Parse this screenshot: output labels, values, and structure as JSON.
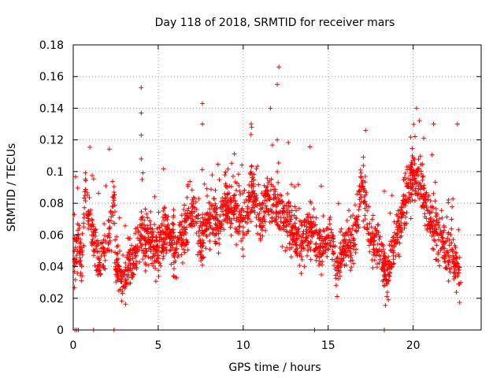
{
  "chart_data": {
    "type": "scatter",
    "title": "Day 118 of 2018, SRMTID for receiver mars",
    "xlabel": "GPS time / hours",
    "ylabel": "SRMTID / TECUs",
    "xlim": [
      0,
      24
    ],
    "ylim": [
      0,
      0.18
    ],
    "xticks": [
      0,
      5,
      10,
      15,
      20
    ],
    "yticks": [
      0,
      0.02,
      0.04,
      0.06,
      0.08,
      0.1,
      0.12,
      0.14,
      0.16,
      0.18
    ],
    "xtick_labels": [
      "0",
      "5",
      "10",
      "15",
      "20"
    ],
    "ytick_labels": [
      "0",
      "0.02",
      "0.04",
      "0.06",
      "0.08",
      "0.1",
      "0.12",
      "0.14",
      "0.16",
      "0.18"
    ],
    "grid": true,
    "marker": "+",
    "color": "#ff0000",
    "series": [
      {
        "name": "SRMTID",
        "sample_points": [
          [
            0.1,
            0.045
          ],
          [
            0.3,
            0.06
          ],
          [
            0.5,
            0.04
          ],
          [
            0.7,
            0.085
          ],
          [
            0.9,
            0.075
          ],
          [
            1.1,
            0.06
          ],
          [
            1.5,
            0.045
          ],
          [
            2.0,
            0.05
          ],
          [
            2.5,
            0.04
          ],
          [
            2.4,
            0.087
          ],
          [
            3.0,
            0.035
          ],
          [
            3.5,
            0.045
          ],
          [
            4.0,
            0.06
          ],
          [
            4.0,
            0.123
          ],
          [
            4.0,
            0.137
          ],
          [
            4.0,
            0.153
          ],
          [
            4.0,
            0.108
          ],
          [
            4.5,
            0.055
          ],
          [
            5.0,
            0.05
          ],
          [
            5.5,
            0.065
          ],
          [
            6.0,
            0.05
          ],
          [
            6.5,
            0.06
          ],
          [
            7.0,
            0.075
          ],
          [
            7.5,
            0.055
          ],
          [
            7.6,
            0.143
          ],
          [
            7.6,
            0.13
          ],
          [
            8.0,
            0.07
          ],
          [
            8.5,
            0.065
          ],
          [
            9.0,
            0.08
          ],
          [
            9.5,
            0.075
          ],
          [
            10.0,
            0.065
          ],
          [
            10.5,
            0.09
          ],
          [
            10.5,
            0.128
          ],
          [
            11.0,
            0.07
          ],
          [
            11.5,
            0.085
          ],
          [
            11.6,
            0.14
          ],
          [
            12.0,
            0.12
          ],
          [
            12.0,
            0.155
          ],
          [
            12.1,
            0.166
          ],
          [
            12.5,
            0.07
          ],
          [
            13.0,
            0.06
          ],
          [
            13.5,
            0.055
          ],
          [
            14.0,
            0.065
          ],
          [
            14.5,
            0.05
          ],
          [
            15.0,
            0.06
          ],
          [
            15.5,
            0.045
          ],
          [
            16.0,
            0.05
          ],
          [
            16.5,
            0.055
          ],
          [
            17.0,
            0.09
          ],
          [
            17.2,
            0.126
          ],
          [
            17.5,
            0.06
          ],
          [
            18.0,
            0.05
          ],
          [
            18.5,
            0.035
          ],
          [
            19.0,
            0.06
          ],
          [
            19.5,
            0.08
          ],
          [
            20.0,
            0.1
          ],
          [
            20.2,
            0.14
          ],
          [
            20.5,
            0.09
          ],
          [
            21.0,
            0.07
          ],
          [
            21.2,
            0.13
          ],
          [
            21.5,
            0.06
          ],
          [
            22.0,
            0.05
          ],
          [
            22.5,
            0.045
          ],
          [
            22.6,
            0.13
          ],
          [
            22.8,
            0.03
          ]
        ],
        "zero_points": [
          0.1,
          0.2,
          0.3,
          1.2,
          2.4,
          14.2,
          18.3
        ]
      }
    ]
  }
}
